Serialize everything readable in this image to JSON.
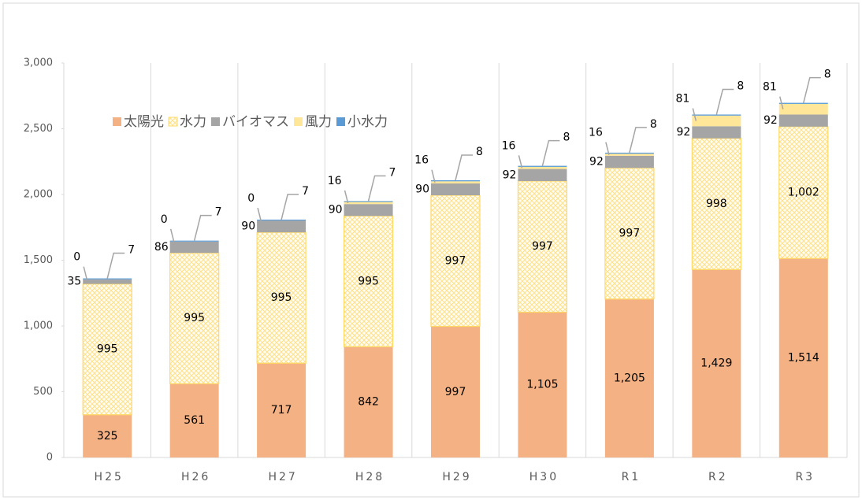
{
  "chart_data": {
    "type": "stacked_bar",
    "categories": [
      "H25",
      "H26",
      "H27",
      "H28",
      "H29",
      "H30",
      "R1",
      "R2",
      "R3"
    ],
    "series": [
      {
        "name": "太陽光",
        "color": "#f4b183",
        "values": [
          325,
          561,
          717,
          842,
          997,
          1105,
          1205,
          1429,
          1514
        ],
        "value_labels": [
          "325",
          "561",
          "717",
          "842",
          "997",
          "1,105",
          "1,205",
          "1,429",
          "1,514"
        ]
      },
      {
        "name": "水力",
        "color": "#ffd966",
        "hatch": true,
        "values": [
          995,
          995,
          995,
          995,
          997,
          997,
          997,
          998,
          1002
        ],
        "value_labels": [
          "995",
          "995",
          "995",
          "995",
          "997",
          "997",
          "997",
          "998",
          "1,002"
        ]
      },
      {
        "name": "バイオマス",
        "color": "#a5a5a5",
        "values": [
          35,
          86,
          90,
          90,
          90,
          92,
          92,
          92,
          92
        ]
      },
      {
        "name": "風力",
        "color": "#ffe699",
        "values": [
          0,
          0,
          0,
          16,
          16,
          16,
          16,
          81,
          81
        ]
      },
      {
        "name": "小水力",
        "color": "#5b9bd5",
        "values": [
          7,
          7,
          7,
          7,
          8,
          8,
          8,
          8,
          8
        ]
      }
    ],
    "ylim": [
      0,
      3000
    ],
    "yticks": [
      0,
      500,
      {
        "value": 1000,
        "label": "1,000"
      },
      {
        "value": 1500,
        "label": "1,500"
      },
      {
        "value": 2000,
        "label": "2,000"
      },
      {
        "value": 2500,
        "label": "2,500"
      },
      {
        "value": 3000,
        "label": "3,000"
      }
    ],
    "grid": true,
    "legend": "upper left"
  }
}
